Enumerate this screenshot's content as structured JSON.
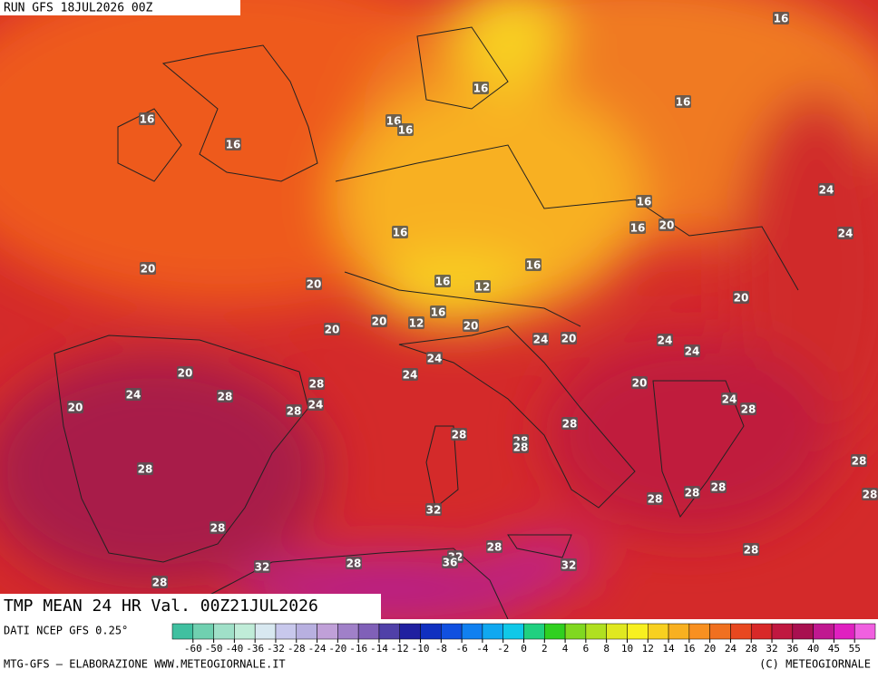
{
  "header": {
    "run": "RUN GFS 18JUL2026 00Z"
  },
  "footer": {
    "title": "TMP MEAN 24 HR Val. 00Z21JUL2026",
    "source": "DATI NCEP GFS 0.25°",
    "credit": "MTG-GFS — ELABORAZIONE WWW.METEOGIORNALE.IT",
    "copyright": "(C) METEOGIORNALE"
  },
  "legend": {
    "ticks": [
      -60,
      -50,
      -40,
      -36,
      -32,
      -28,
      -24,
      -20,
      -16,
      -14,
      -12,
      -10,
      -8,
      -6,
      -4,
      -2,
      0,
      2,
      4,
      6,
      8,
      10,
      12,
      14,
      16,
      20,
      24,
      28,
      32,
      36,
      40,
      45,
      55
    ],
    "colors": [
      "#40c0a0",
      "#70d0b0",
      "#a0e0c8",
      "#c0ecd8",
      "#d8e8f0",
      "#c8c8ec",
      "#b8b0e0",
      "#c0a0d8",
      "#a080c8",
      "#8060b8",
      "#5040a8",
      "#2020a0",
      "#1030c0",
      "#1050e0",
      "#1080f0",
      "#10a8f0",
      "#10c8e8",
      "#20d080",
      "#30d020",
      "#80d820",
      "#b0e020",
      "#e0e820",
      "#f8f020",
      "#f8d020",
      "#f8b020",
      "#f89020",
      "#f07020",
      "#e84820",
      "#d82828",
      "#c01840",
      "#a81050",
      "#c01890",
      "#e020c0",
      "#f060e0"
    ]
  },
  "map": {
    "labels": [
      16,
      16,
      16,
      16,
      16,
      16,
      16,
      16,
      24,
      16,
      20,
      16,
      24,
      20,
      16,
      20,
      16,
      12,
      20,
      20,
      12,
      16,
      20,
      20,
      24,
      20,
      24,
      24,
      24,
      24,
      20,
      28,
      20,
      24,
      28,
      28,
      24,
      24,
      28,
      20,
      28,
      28,
      28,
      28,
      28,
      28,
      28,
      28,
      28,
      28,
      32,
      28,
      28,
      28,
      32,
      36,
      32,
      28,
      32,
      28
    ]
  }
}
